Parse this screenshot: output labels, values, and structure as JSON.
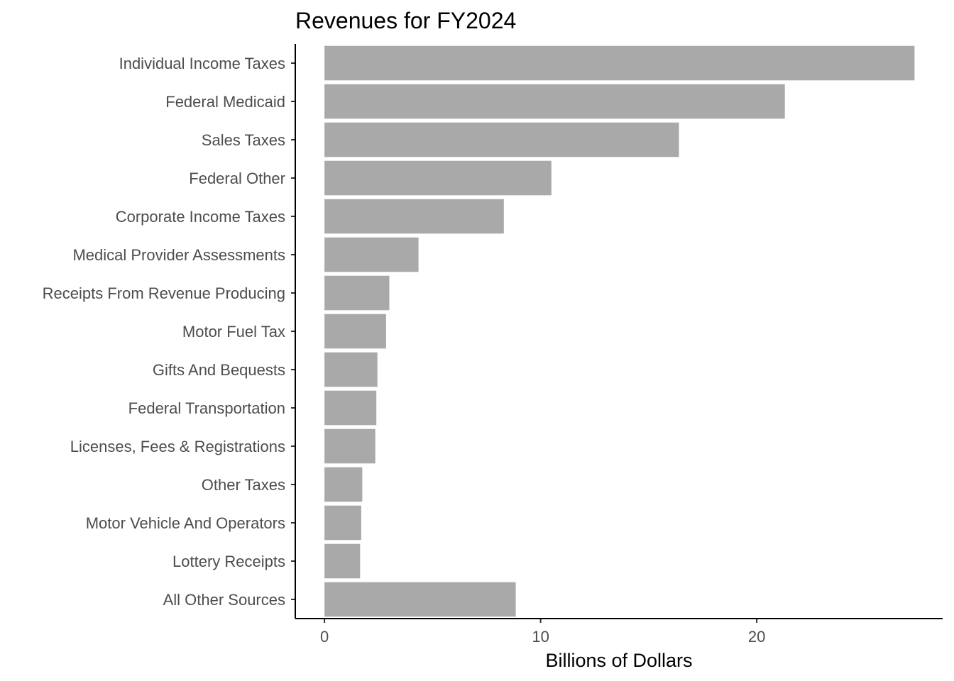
{
  "chart_data": {
    "type": "bar",
    "orientation": "horizontal",
    "title": "Revenues for FY2024",
    "xlabel": "Billions of Dollars",
    "ylabel": "",
    "xlim": [
      -1.35,
      28.6
    ],
    "xticks": [
      0,
      10,
      20
    ],
    "xtick_labels": [
      "0",
      "10",
      "20"
    ],
    "grid": false,
    "bar_color": "#a9a9a9",
    "categories": [
      "Individual Income Taxes",
      "Federal Medicaid",
      "Sales Taxes",
      "Federal Other",
      "Corporate Income Taxes",
      "Medical Provider Assessments",
      "Receipts From Revenue Producing",
      "Motor Fuel Tax",
      "Gifts And Bequests",
      "Federal Transportation",
      "Licenses, Fees & Registrations",
      "Other Taxes",
      "Motor Vehicle And Operators",
      "Lottery Receipts",
      "All Other Sources"
    ],
    "values": [
      27.3,
      21.3,
      16.4,
      10.5,
      8.3,
      4.35,
      3.0,
      2.85,
      2.45,
      2.4,
      2.35,
      1.75,
      1.7,
      1.65,
      8.85
    ]
  }
}
